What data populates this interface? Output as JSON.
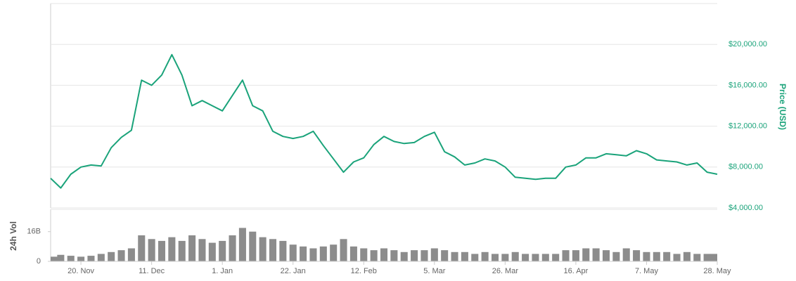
{
  "chart_data": [
    {
      "type": "line",
      "ylabel": "Price (USD)",
      "color": "#1aa37a",
      "axis_color": "#1aa37a",
      "ylim": [
        4000,
        24000
      ],
      "yticks": [
        {
          "value": 4000,
          "label": "$4,000.00"
        },
        {
          "value": 8000,
          "label": "$8,000.00"
        },
        {
          "value": 12000,
          "label": "$12,000.00"
        },
        {
          "value": 16000,
          "label": "$16,000.00"
        },
        {
          "value": 20000,
          "label": "$20,000.00"
        }
      ],
      "grid": true,
      "values": [
        6900,
        5950,
        7300,
        8000,
        8200,
        8100,
        9900,
        10900,
        11600,
        16500,
        16000,
        17000,
        19000,
        17000,
        14000,
        14500,
        14000,
        13500,
        15000,
        16500,
        14000,
        13500,
        11500,
        11000,
        10800,
        11000,
        11500,
        10100,
        8800,
        7500,
        8500,
        8900,
        10200,
        11000,
        10500,
        10300,
        10400,
        11000,
        11400,
        9500,
        9000,
        8200,
        8400,
        8800,
        8600,
        8000,
        7000,
        6900,
        6800,
        6900,
        6900,
        8000,
        8200,
        8900,
        8900,
        9300,
        9200,
        9100,
        9600,
        9300,
        8700,
        8600,
        8500,
        8200,
        8400,
        7500,
        7300
      ]
    },
    {
      "type": "bar",
      "ylabel": "24h Vol",
      "color": "#8c8c8c",
      "ylim": [
        0,
        28000000000.0
      ],
      "yticks": [
        0,
        {
          "value": 16000000000.0,
          "label": "16B"
        }
      ],
      "categories": [
        null,
        null,
        null,
        "20. Nov",
        null,
        null,
        null,
        null,
        null,
        null,
        "11. Dec",
        null,
        null,
        null,
        null,
        null,
        null,
        "1. Jan",
        null,
        null,
        null,
        null,
        null,
        null,
        "22. Jan",
        null,
        null,
        null,
        null,
        null,
        null,
        "12. Feb",
        null,
        null,
        null,
        null,
        null,
        null,
        "5. Mar",
        null,
        null,
        null,
        null,
        null,
        null,
        "26. Mar",
        null,
        null,
        null,
        null,
        null,
        null,
        "16. Apr",
        null,
        null,
        null,
        null,
        null,
        null,
        "7. May",
        null,
        null,
        null,
        null,
        null,
        null,
        "28. May"
      ],
      "values": [
        2500000000.0,
        3500000000.0,
        3000000000.0,
        2500000000.0,
        3000000000.0,
        4000000000.0,
        5000000000.0,
        6000000000.0,
        7000000000.0,
        14000000000.0,
        12000000000.0,
        11000000000.0,
        13000000000.0,
        11000000000.0,
        14000000000.0,
        12000000000.0,
        10000000000.0,
        11000000000.0,
        14000000000.0,
        18000000000.0,
        16000000000.0,
        13000000000.0,
        12000000000.0,
        11000000000.0,
        9000000000.0,
        8000000000.0,
        7000000000.0,
        8000000000.0,
        9000000000.0,
        12000000000.0,
        8000000000.0,
        7000000000.0,
        6000000000.0,
        7000000000.0,
        6000000000.0,
        5000000000.0,
        6000000000.0,
        6000000000.0,
        7000000000.0,
        6000000000.0,
        5000000000.0,
        5000000000.0,
        4000000000.0,
        5000000000.0,
        4000000000.0,
        4000000000.0,
        5000000000.0,
        4000000000.0,
        4000000000.0,
        4000000000.0,
        4000000000.0,
        6000000000.0,
        6000000000.0,
        7000000000.0,
        7000000000.0,
        6000000000.0,
        5000000000.0,
        7000000000.0,
        6000000000.0,
        5000000000.0,
        5000000000.0,
        5000000000.0,
        4000000000.0,
        5000000000.0,
        4000000000.0,
        4000000000.0,
        4000000000.0
      ]
    }
  ]
}
